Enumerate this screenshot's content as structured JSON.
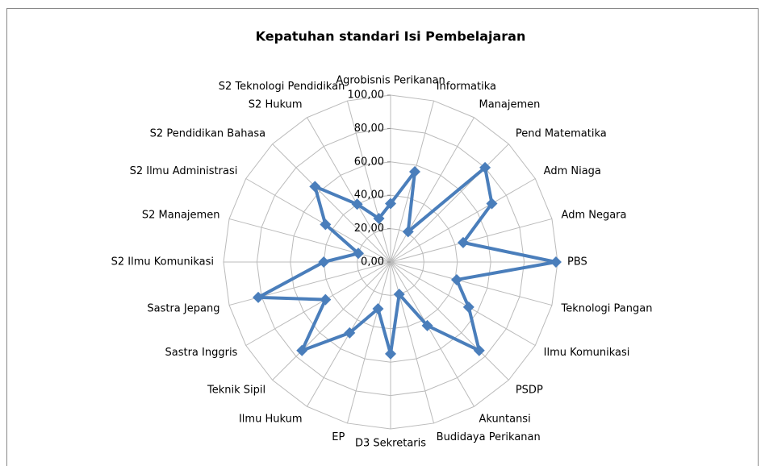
{
  "chart_data": {
    "type": "radar",
    "title": "Kepatuhan standari Isi Pembelajaran",
    "categories": [
      "Agrobisnis Perikanan",
      "Informatika",
      "Manajemen",
      "Pend Matematika",
      "Adm Niaga",
      "Adm Negara",
      "PBS",
      "Teknologi Pangan",
      "Ilmu  Komunikasi",
      "PSDP",
      "Akuntansi",
      "Budidaya Perikanan",
      "D3 Sekretaris",
      "EP",
      "Ilmu Hukum",
      "Teknik Sipil",
      "Sastra Inggris",
      "Sastra Jepang",
      "S2 Ilmu Komunikasi",
      "S2 Manajemen",
      "S2 Ilmu Administrasi",
      "S2 Pendidikan Bahasa",
      "S2 Hukum",
      "S2 Teknologi Pendidikan"
    ],
    "values": [
      35,
      56,
      21,
      80,
      70,
      45,
      99,
      41,
      54,
      75,
      44,
      20,
      55,
      29,
      49,
      75,
      45,
      82,
      40,
      20,
      45,
      64,
      40,
      27
    ],
    "color": "#4a7ebb",
    "ylim": [
      0,
      100
    ],
    "yticks": [
      {
        "value": 0,
        "label": "0,00"
      },
      {
        "value": 20,
        "label": "20,00"
      },
      {
        "value": 40,
        "label": "40,00"
      },
      {
        "value": 60,
        "label": "60,00"
      },
      {
        "value": 80,
        "label": "80,00"
      },
      {
        "value": 100,
        "label": "100,00"
      }
    ],
    "grid": true
  }
}
